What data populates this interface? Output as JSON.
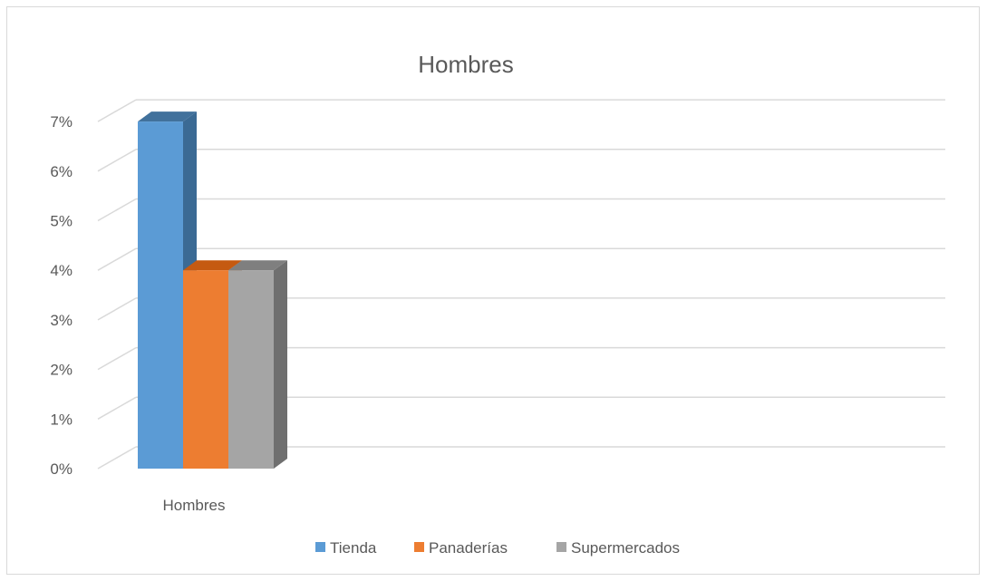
{
  "chart_data": {
    "type": "bar",
    "title": "Hombres",
    "xlabel": "",
    "ylabel": "",
    "categories": [
      "Hombres"
    ],
    "series": [
      {
        "name": "Tienda",
        "values": [
          0.07
        ],
        "color": "#5b9bd5",
        "side_color": "#3b6a94",
        "top_color": "#41719c"
      },
      {
        "name": "Panaderías",
        "values": [
          0.04
        ],
        "color": "#ed7d31",
        "side_color": "#a65722",
        "top_color": "#c55a11"
      },
      {
        "name": "Supermercados",
        "values": [
          0.04
        ],
        "color": "#a5a5a5",
        "side_color": "#6f6f6f",
        "top_color": "#7f7f7f"
      }
    ],
    "y_ticks": [
      "0%",
      "1%",
      "2%",
      "3%",
      "4%",
      "5%",
      "6%",
      "7%"
    ],
    "ylim": [
      0,
      0.07
    ],
    "grid": true,
    "gridline_color": "#d9d9d9",
    "legend_position": "bottom",
    "style": "3d-column"
  }
}
